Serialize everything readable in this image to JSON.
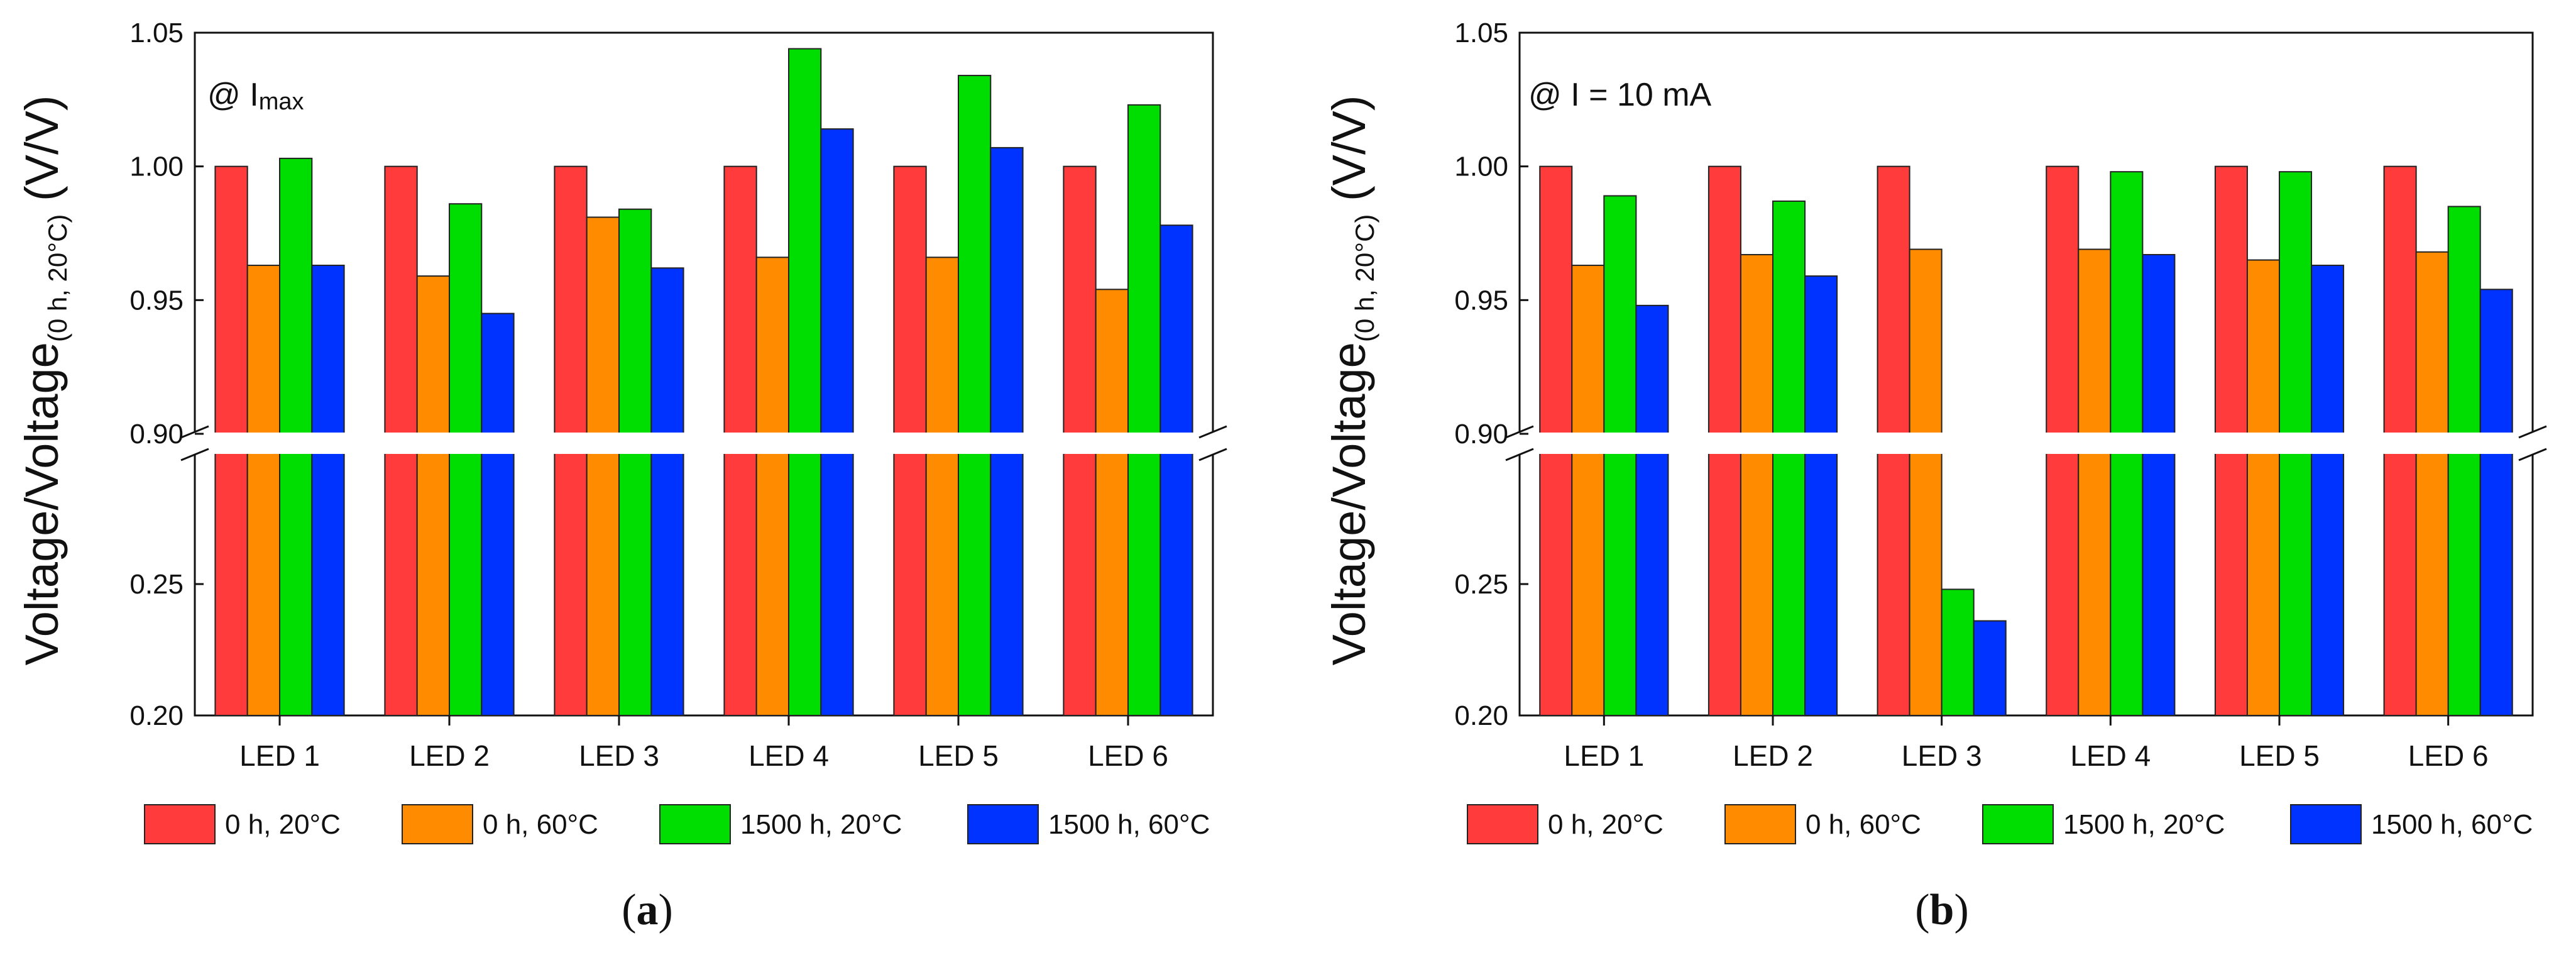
{
  "chart_data": [
    {
      "panel": "a",
      "type": "bar",
      "categories": [
        "LED 1",
        "LED 2",
        "LED 3",
        "LED 4",
        "LED 5",
        "LED 6"
      ],
      "series": [
        {
          "name": "0 h, 20°C",
          "color": "#ff3b3b",
          "values": [
            1.0,
            1.0,
            1.0,
            1.0,
            1.0,
            1.0
          ]
        },
        {
          "name": "0 h, 60°C",
          "color": "#ff8c00",
          "values": [
            0.963,
            0.959,
            0.981,
            0.966,
            0.966,
            0.954
          ]
        },
        {
          "name": "1500 h, 20°C",
          "color": "#00dd00",
          "values": [
            1.003,
            0.986,
            0.984,
            1.044,
            1.034,
            1.023
          ]
        },
        {
          "name": "1500 h, 60°C",
          "color": "#0033ff",
          "values": [
            0.963,
            0.945,
            0.962,
            1.014,
            1.007,
            0.978
          ]
        }
      ],
      "ylabel_main": "Voltage/Voltage",
      "ylabel_sub": "(0 h, 20°C)",
      "ylabel_unit": " (V/V)",
      "annotation": {
        "prefix": "@ I",
        "sub": "max"
      },
      "y_upper_ticks": [
        "1.05",
        "1.00",
        "0.95",
        "0.90"
      ],
      "y_lower_ticks": [
        "0.25",
        "0.20"
      ],
      "y_upper_range": [
        0.9,
        1.05
      ],
      "y_lower_range": [
        0.2,
        0.3
      ],
      "axis_break": [
        0.3,
        0.9
      ],
      "panel_label": "a"
    },
    {
      "panel": "b",
      "type": "bar",
      "categories": [
        "LED 1",
        "LED 2",
        "LED 3",
        "LED 4",
        "LED 5",
        "LED 6"
      ],
      "series": [
        {
          "name": "0 h, 20°C",
          "color": "#ff3b3b",
          "values": [
            1.0,
            1.0,
            1.0,
            1.0,
            1.0,
            1.0
          ]
        },
        {
          "name": "0 h, 60°C",
          "color": "#ff8c00",
          "values": [
            0.963,
            0.967,
            0.969,
            0.969,
            0.965,
            0.968
          ]
        },
        {
          "name": "1500 h, 20°C",
          "color": "#00dd00",
          "values": [
            0.989,
            0.987,
            0.248,
            0.998,
            0.998,
            0.985
          ]
        },
        {
          "name": "1500 h, 60°C",
          "color": "#0033ff",
          "values": [
            0.948,
            0.959,
            0.236,
            0.967,
            0.963,
            0.954
          ]
        }
      ],
      "ylabel_main": "Voltage/Voltage",
      "ylabel_sub": "(0 h, 20°C)",
      "ylabel_unit": " (V/V)",
      "annotation": {
        "prefix": "@ I = 10 mA",
        "sub": ""
      },
      "y_upper_ticks": [
        "1.05",
        "1.00",
        "0.95",
        "0.90"
      ],
      "y_lower_ticks": [
        "0.25",
        "0.20"
      ],
      "y_upper_range": [
        0.9,
        1.05
      ],
      "y_lower_range": [
        0.2,
        0.3
      ],
      "axis_break": [
        0.3,
        0.9
      ],
      "panel_label": "b"
    }
  ]
}
